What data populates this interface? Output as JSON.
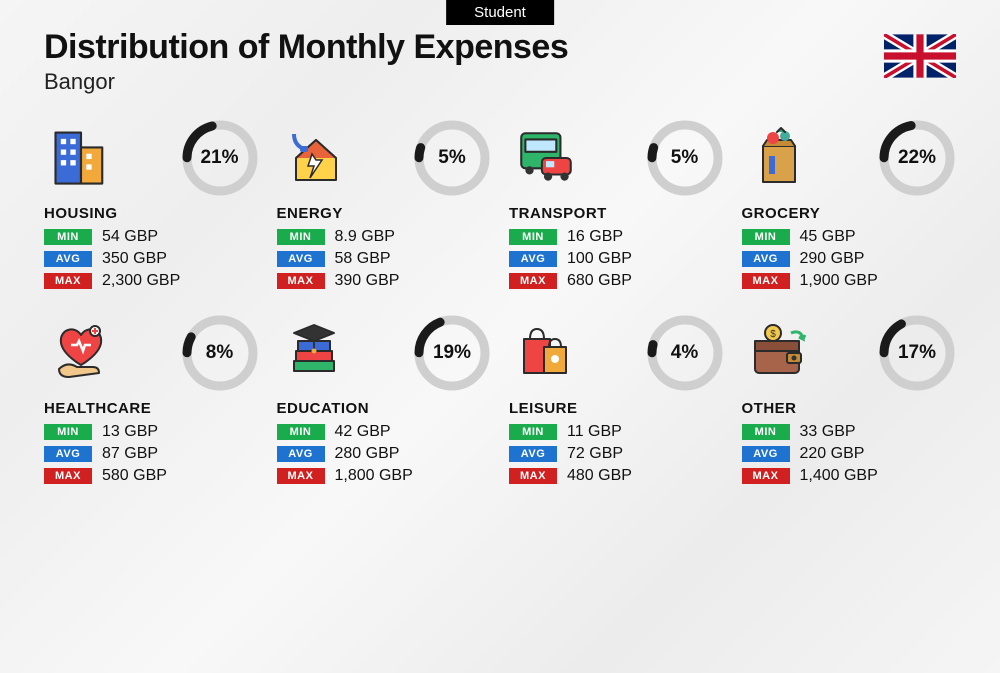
{
  "badge": "Student",
  "title": "Distribution of Monthly Expenses",
  "city": "Bangor",
  "currency": "GBP",
  "labels": {
    "min": "MIN",
    "avg": "AVG",
    "max": "MAX"
  },
  "colors": {
    "min": "#1aab4c",
    "avg": "#1e72d0",
    "max": "#d02020",
    "donut_fg": "#1a1a1a",
    "donut_bg": "#cfcfcf",
    "text": "#111111",
    "background": "#f1f1f1"
  },
  "donut": {
    "radius": 33,
    "stroke": 9
  },
  "flag": "uk",
  "categories": [
    {
      "key": "housing",
      "name": "HOUSING",
      "percent": 21,
      "min": "54 GBP",
      "avg": "350 GBP",
      "max": "2,300 GBP",
      "icon": "buildings"
    },
    {
      "key": "energy",
      "name": "ENERGY",
      "percent": 5,
      "min": "8.9 GBP",
      "avg": "58 GBP",
      "max": "390 GBP",
      "icon": "house-bolt"
    },
    {
      "key": "transport",
      "name": "TRANSPORT",
      "percent": 5,
      "min": "16 GBP",
      "avg": "100 GBP",
      "max": "680 GBP",
      "icon": "bus-car"
    },
    {
      "key": "grocery",
      "name": "GROCERY",
      "percent": 22,
      "min": "45 GBP",
      "avg": "290 GBP",
      "max": "1,900 GBP",
      "icon": "grocery-bag"
    },
    {
      "key": "healthcare",
      "name": "HEALTHCARE",
      "percent": 8,
      "min": "13 GBP",
      "avg": "87 GBP",
      "max": "580 GBP",
      "icon": "heart-hand"
    },
    {
      "key": "education",
      "name": "EDUCATION",
      "percent": 19,
      "min": "42 GBP",
      "avg": "280 GBP",
      "max": "1,800 GBP",
      "icon": "grad-books"
    },
    {
      "key": "leisure",
      "name": "LEISURE",
      "percent": 4,
      "min": "11 GBP",
      "avg": "72 GBP",
      "max": "480 GBP",
      "icon": "shopping-bags"
    },
    {
      "key": "other",
      "name": "OTHER",
      "percent": 17,
      "min": "33 GBP",
      "avg": "220 GBP",
      "max": "1,400 GBP",
      "icon": "wallet"
    }
  ]
}
